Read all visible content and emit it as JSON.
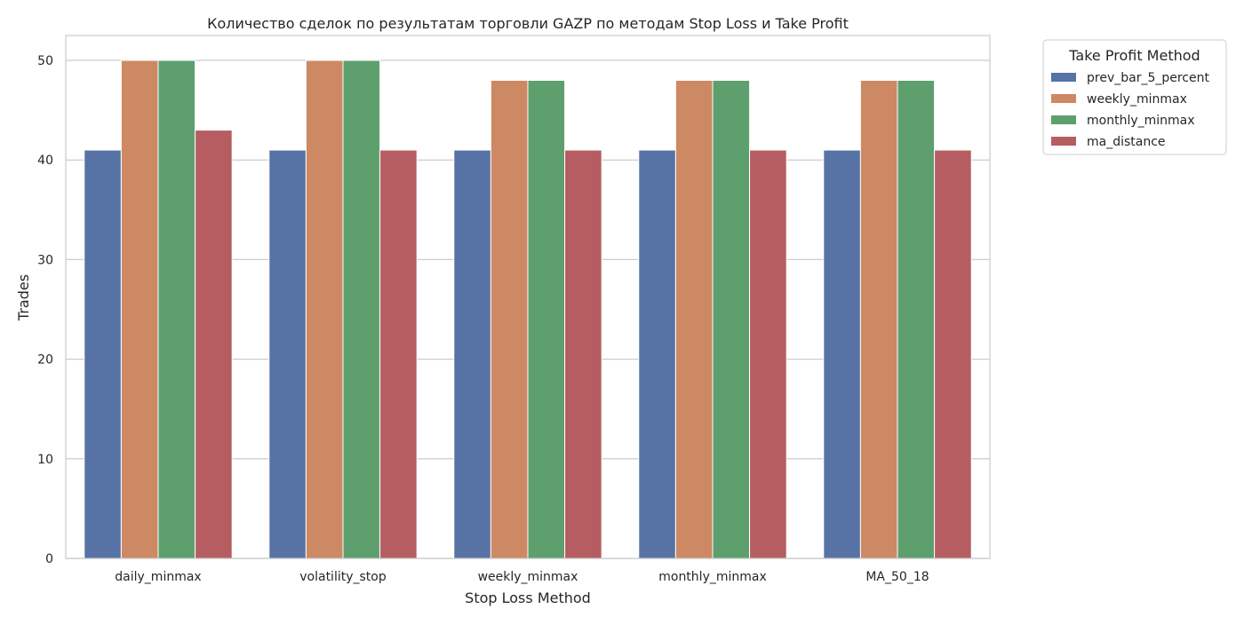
{
  "chart_data": {
    "type": "bar",
    "title": "Количество сделок по результатам торговли GAZP по методам Stop Loss и Take Profit",
    "xlabel": "Stop Loss Method",
    "ylabel": "Trades",
    "categories": [
      "daily_minmax",
      "volatility_stop",
      "weekly_minmax",
      "monthly_minmax",
      "MA_50_18"
    ],
    "ylim": [
      0,
      52.5
    ],
    "yticks": [
      0,
      10,
      20,
      30,
      40,
      50
    ],
    "grid": "horizontal",
    "legend": {
      "title": "Take Profit Method",
      "placement": "outside-top-right"
    },
    "series": [
      {
        "name": "prev_bar_5_percent",
        "color": "#5773a5",
        "values": [
          41,
          41,
          41,
          41,
          41
        ]
      },
      {
        "name": "weekly_minmax",
        "color": "#cd8963",
        "values": [
          50,
          50,
          48,
          48,
          48
        ]
      },
      {
        "name": "monthly_minmax",
        "color": "#5e9f6e",
        "values": [
          50,
          50,
          48,
          48,
          48
        ]
      },
      {
        "name": "ma_distance",
        "color": "#b65d61",
        "values": [
          43,
          41,
          41,
          41,
          41
        ]
      }
    ]
  }
}
